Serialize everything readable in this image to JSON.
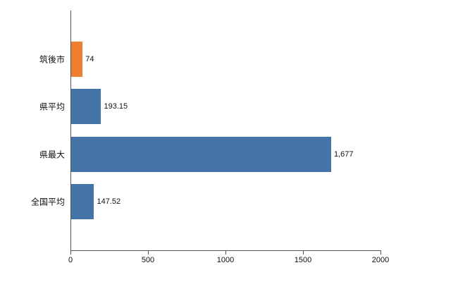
{
  "chart_data": {
    "type": "bar",
    "orientation": "horizontal",
    "title": "",
    "xlabel": "",
    "ylabel": "",
    "categories": [
      "筑後市",
      "県平均",
      "県最大",
      "全国平均"
    ],
    "values": [
      74,
      193.15,
      1677,
      147.52
    ],
    "value_labels": [
      "74",
      "193.15",
      "1,677",
      "147.52"
    ],
    "bar_colors": [
      "#ee7f2c",
      "#4473a8",
      "#4473a8",
      "#4473a8"
    ],
    "xlim": [
      0,
      2000
    ],
    "x_ticks": [
      "0",
      "500",
      "1000",
      "1500",
      "2000"
    ],
    "x_tick_values": [
      0,
      500,
      1000,
      1500,
      2000
    ],
    "grid": false,
    "legend": "none",
    "axis_color": "#555555",
    "background_color": "#ffffff"
  }
}
